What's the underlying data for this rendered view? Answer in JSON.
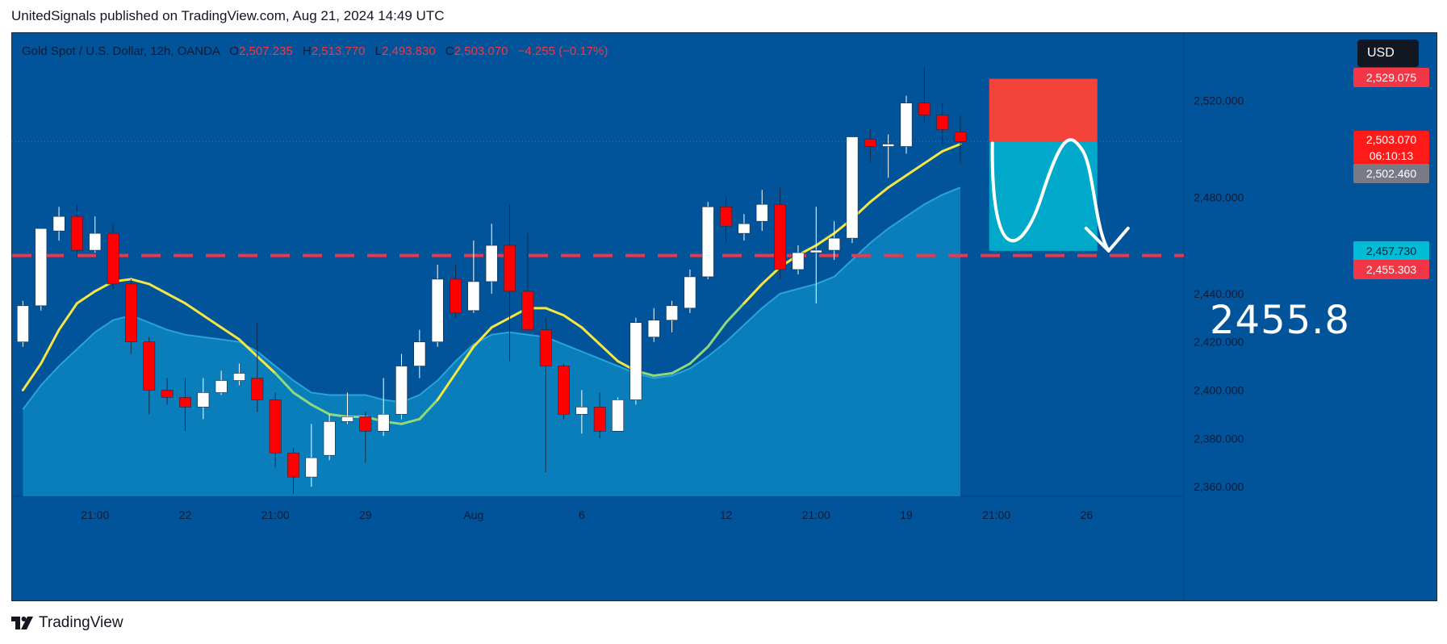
{
  "header": {
    "published_text": "UnitedSignals published on TradingView.com, Aug 21, 2024 14:49 UTC"
  },
  "symbol": {
    "name": "Gold Spot / U.S. Dollar, 12h, OANDA",
    "open_label": "O",
    "open": "2,507.235",
    "high_label": "H",
    "high": "2,513.770",
    "low_label": "L",
    "low": "2,493.830",
    "close_label": "C",
    "close": "2,503.070",
    "change": "−4.255 (−0.17%)"
  },
  "currency": "USD",
  "price_tags": {
    "stop": "2,529.075",
    "last": "2,503.070",
    "countdown": "06:10:13",
    "ma_value": "2,502.460",
    "target": "2,457.730",
    "band_value": "2,455.303"
  },
  "target_annotation": "2455.8",
  "brand": {
    "name": "TradingView"
  },
  "colors": {
    "background": "#02549a",
    "bull_candle": "#ffffff",
    "bear_candle": "#ff0000",
    "ma_line": "#f5e642",
    "ma_line_below": "#8fd97a",
    "area_fill": "#0c8cc4",
    "stop_zone": "#f4433a",
    "profit_zone": "#00a9c9",
    "dashed_level": "#f23645"
  },
  "chart_data": {
    "type": "candlestick",
    "y_axis": {
      "ticks": [
        2360,
        2380,
        2400,
        2420,
        2440,
        2480,
        2520
      ],
      "tick_labels": [
        "2,360.000",
        "2,380.000",
        "2,400.000",
        "2,420.000",
        "2,440.000",
        "2,480.000",
        "2,520.000"
      ],
      "range": [
        2356,
        2548
      ]
    },
    "x_axis": {
      "labels": [
        {
          "text": "21:00",
          "index": 4
        },
        {
          "text": "22",
          "index": 9
        },
        {
          "text": "21:00",
          "index": 14
        },
        {
          "text": "29",
          "index": 19
        },
        {
          "text": "Aug",
          "index": 25
        },
        {
          "text": "6",
          "index": 31
        },
        {
          "text": "12",
          "index": 39
        },
        {
          "text": "21:00",
          "index": 44
        },
        {
          "text": "19",
          "index": 49
        },
        {
          "text": "21:00",
          "index": 54
        },
        {
          "text": "26",
          "index": 59
        }
      ],
      "index_range": [
        -0.6,
        64.4
      ]
    },
    "candles": [
      [
        2420,
        2437,
        2418,
        2435
      ],
      [
        2435,
        2467,
        2433,
        2467
      ],
      [
        2466,
        2476,
        2462,
        2472
      ],
      [
        2472,
        2477,
        2455,
        2458
      ],
      [
        2458,
        2472,
        2457,
        2465
      ],
      [
        2465,
        2469,
        2442,
        2444
      ],
      [
        2444,
        2446,
        2415,
        2420
      ],
      [
        2420,
        2422,
        2390,
        2400
      ],
      [
        2400,
        2405,
        2394,
        2397
      ],
      [
        2397,
        2405,
        2383,
        2393
      ],
      [
        2393,
        2405,
        2388,
        2399
      ],
      [
        2399,
        2408,
        2398,
        2404
      ],
      [
        2404,
        2411,
        2402,
        2407
      ],
      [
        2405,
        2428,
        2391,
        2396
      ],
      [
        2396,
        2399,
        2368,
        2374
      ],
      [
        2374,
        2376,
        2357,
        2364
      ],
      [
        2364,
        2386,
        2360,
        2372
      ],
      [
        2373,
        2390,
        2371,
        2387
      ],
      [
        2387,
        2399,
        2386,
        2389
      ],
      [
        2389,
        2391,
        2370,
        2383
      ],
      [
        2383,
        2405,
        2381,
        2390
      ],
      [
        2390,
        2415,
        2388,
        2410
      ],
      [
        2410,
        2425,
        2405,
        2420
      ],
      [
        2420,
        2452,
        2418,
        2446
      ],
      [
        2446,
        2452,
        2430,
        2432
      ],
      [
        2433,
        2462,
        2432,
        2445
      ],
      [
        2445,
        2469,
        2440,
        2460
      ],
      [
        2460,
        2477,
        2412,
        2441
      ],
      [
        2441,
        2465,
        2426,
        2425
      ],
      [
        2425,
        2430,
        2366,
        2410
      ],
      [
        2410,
        2411,
        2388,
        2390
      ],
      [
        2390,
        2400,
        2382,
        2393
      ],
      [
        2393,
        2399,
        2380,
        2383
      ],
      [
        2383,
        2397,
        2383,
        2396
      ],
      [
        2396,
        2430,
        2394,
        2428
      ],
      [
        2422,
        2434,
        2420,
        2429
      ],
      [
        2429,
        2437,
        2424,
        2435
      ],
      [
        2434,
        2450,
        2432,
        2447
      ],
      [
        2447,
        2478,
        2446,
        2476
      ],
      [
        2476,
        2480,
        2461,
        2468
      ],
      [
        2465,
        2473,
        2462,
        2469
      ],
      [
        2470,
        2483,
        2466,
        2477
      ],
      [
        2477,
        2484,
        2446,
        2450
      ],
      [
        2450,
        2460,
        2448,
        2457
      ],
      [
        2457,
        2476,
        2436,
        2458
      ],
      [
        2458,
        2470,
        2454,
        2463
      ],
      [
        2463,
        2505,
        2461,
        2505
      ],
      [
        2504,
        2508,
        2494,
        2501
      ],
      [
        2501,
        2506,
        2488,
        2502
      ],
      [
        2501,
        2522,
        2498,
        2519
      ],
      [
        2519,
        2534,
        2511,
        2514
      ],
      [
        2514,
        2519,
        2502,
        2508
      ],
      [
        2507,
        2514,
        2494,
        2503
      ]
    ],
    "ma_line": [
      2400,
      2411,
      2425,
      2436,
      2441,
      2445,
      2446,
      2444,
      2440,
      2436,
      2431,
      2426,
      2421,
      2414,
      2407,
      2399,
      2394,
      2390,
      2389,
      2389,
      2387,
      2386,
      2388,
      2396,
      2407,
      2418,
      2426,
      2430,
      2434,
      2434,
      2431,
      2426,
      2419,
      2412,
      2408,
      2406,
      2407,
      2411,
      2418,
      2428,
      2436,
      2444,
      2451,
      2456,
      2460,
      2465,
      2471,
      2478,
      2484,
      2489,
      2494,
      2499,
      2502
    ],
    "area_band": [
      2392,
      2402,
      2410,
      2417,
      2424,
      2429,
      2431,
      2428,
      2425,
      2423,
      2422,
      2421,
      2420,
      2416,
      2410,
      2404,
      2399,
      2398,
      2398,
      2398,
      2396,
      2395,
      2398,
      2404,
      2412,
      2419,
      2423,
      2424,
      2423,
      2422,
      2419,
      2416,
      2413,
      2410,
      2407,
      2405,
      2406,
      2409,
      2414,
      2420,
      2427,
      2434,
      2440,
      2442,
      2444,
      2447,
      2454,
      2461,
      2467,
      2472,
      2477,
      2481,
      2484
    ],
    "level_line": 2455.8,
    "last_price": 2503.07,
    "position": {
      "start_index": 53.6,
      "end_index": 59.6,
      "entry": 2503.07,
      "stop": 2529.075,
      "target": 2457.73
    }
  }
}
